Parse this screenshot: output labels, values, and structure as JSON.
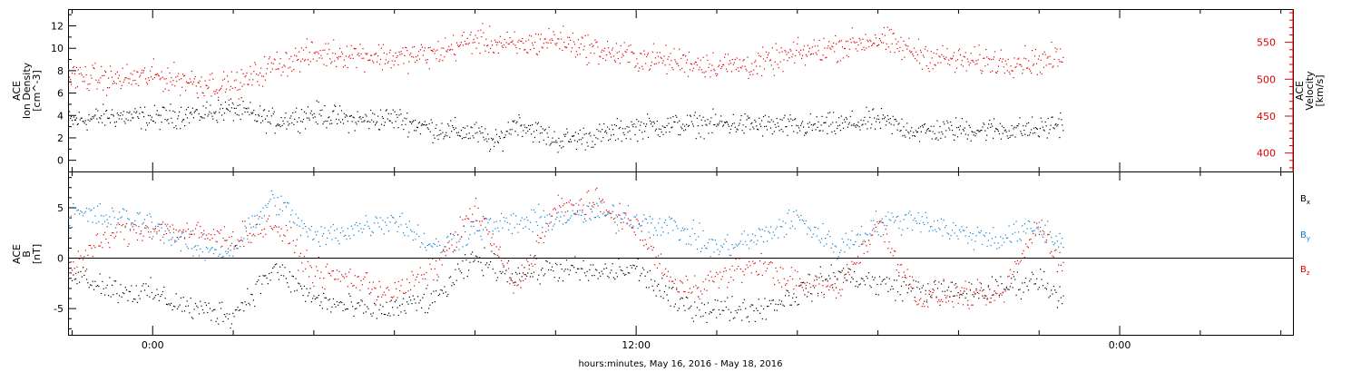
{
  "chart_data": [
    {
      "type": "scatter",
      "panel": "top",
      "left_axis": {
        "label_lines": [
          "ACE",
          "Ion Density",
          "[cm^-3]"
        ],
        "ylim": [
          -1,
          13.5
        ],
        "ticks": [
          0,
          2,
          4,
          6,
          8,
          10,
          12
        ],
        "color": "#000000"
      },
      "right_axis": {
        "label_lines": [
          "ACE",
          "Velocity",
          "[km/s]"
        ],
        "ylim": [
          375,
          595
        ],
        "ticks": [
          400,
          450,
          500,
          550
        ],
        "color": "#e00000"
      },
      "series": [
        {
          "color": "#000000",
          "axis": "left",
          "x_hours": [
            -2.1,
            -1,
            0,
            1,
            2,
            3,
            4,
            5,
            6,
            7,
            8,
            8.5,
            9,
            10,
            11,
            12,
            13,
            14,
            15,
            16,
            17,
            18,
            19,
            20,
            21,
            22,
            22.6
          ],
          "y": [
            3.5,
            4,
            3.8,
            4.2,
            4.6,
            3.5,
            4.2,
            3.6,
            3.8,
            2.8,
            2.5,
            1.5,
            3.5,
            1.8,
            2.2,
            3.0,
            3.2,
            3.3,
            3.2,
            3.0,
            3.2,
            3.6,
            2.6,
            2.8,
            2.8,
            2.8,
            3.5
          ]
        },
        {
          "color": "#e00000",
          "axis": "right",
          "x_hours": [
            -2.1,
            -1,
            0,
            1,
            2,
            3,
            4,
            5,
            6,
            7,
            8,
            9,
            10,
            11,
            12,
            13,
            14,
            15,
            16,
            17,
            18,
            19,
            20,
            21,
            22,
            22.6
          ],
          "y": [
            505,
            500,
            505,
            498,
            490,
            520,
            535,
            535,
            530,
            535,
            555,
            545,
            555,
            540,
            530,
            525,
            520,
            520,
            535,
            545,
            555,
            535,
            525,
            525,
            525,
            530
          ]
        }
      ]
    },
    {
      "type": "scatter",
      "panel": "bottom",
      "left_axis": {
        "label_lines": [
          "ACE",
          "B",
          "[nT]"
        ],
        "ylim": [
          -7.6,
          8.6
        ],
        "ticks": [
          -5,
          0,
          5
        ],
        "color": "#000000"
      },
      "zero_line": true,
      "legend": [
        {
          "label": "B",
          "sub": "x",
          "color": "#000000"
        },
        {
          "label": "B",
          "sub": "y",
          "color": "#0a7fd0"
        },
        {
          "label": "B",
          "sub": "z",
          "color": "#e00000"
        }
      ],
      "series": [
        {
          "color": "#000000",
          "x_hours": [
            -2.1,
            -1,
            0,
            1,
            2,
            3,
            4,
            5,
            6,
            7,
            8,
            9,
            10,
            11,
            12,
            13,
            14,
            15,
            16,
            17,
            18,
            19,
            20,
            21,
            22,
            22.6
          ],
          "y": [
            -1,
            -3,
            -3.5,
            -5,
            -5.5,
            -1,
            -4,
            -5,
            -5,
            -4,
            0,
            -1.5,
            -1,
            -1.5,
            -1,
            -4.5,
            -5,
            -5,
            -3.5,
            -1.5,
            -2.5,
            -3,
            -3.5,
            -3,
            -2,
            -4
          ]
        },
        {
          "color": "#0a7fd0",
          "x_hours": [
            -2.1,
            -1,
            0,
            1,
            2,
            3,
            4,
            5,
            6,
            7,
            8,
            9,
            10,
            11,
            12,
            13,
            14,
            15,
            16,
            17,
            18,
            19,
            20,
            21,
            22,
            22.6
          ],
          "y": [
            4.5,
            4,
            3.5,
            1,
            1,
            6,
            2,
            3,
            4,
            1,
            3,
            3.5,
            4,
            4.5,
            4,
            3,
            1,
            2,
            4,
            1,
            3.5,
            4,
            2.5,
            2,
            3,
            1.5
          ]
        },
        {
          "color": "#e00000",
          "x_hours": [
            -2.1,
            -1,
            0,
            1,
            2,
            3,
            4,
            5,
            6,
            7,
            8,
            9,
            10,
            11,
            12,
            13,
            14,
            15,
            16,
            17,
            18,
            19,
            20,
            21,
            22,
            22.6
          ],
          "y": [
            -1,
            2.5,
            3,
            2.5,
            2,
            3.5,
            -1.5,
            -2,
            -3.5,
            -1,
            5,
            -3,
            5,
            5.5,
            3,
            -3,
            -2,
            -0.5,
            -2.5,
            -3,
            3.5,
            -4,
            -3.5,
            -4,
            3.5,
            -1
          ]
        }
      ]
    }
  ],
  "x_axis": {
    "range_hours": [
      -2.1,
      28.3
    ],
    "tick_hours": [
      0,
      12,
      24
    ],
    "tick_labels": [
      "0:00",
      "12:00",
      "0:00"
    ],
    "minor_step_hours": 2,
    "label": "hours:minutes, May 16, 2016 - May 18, 2016"
  }
}
